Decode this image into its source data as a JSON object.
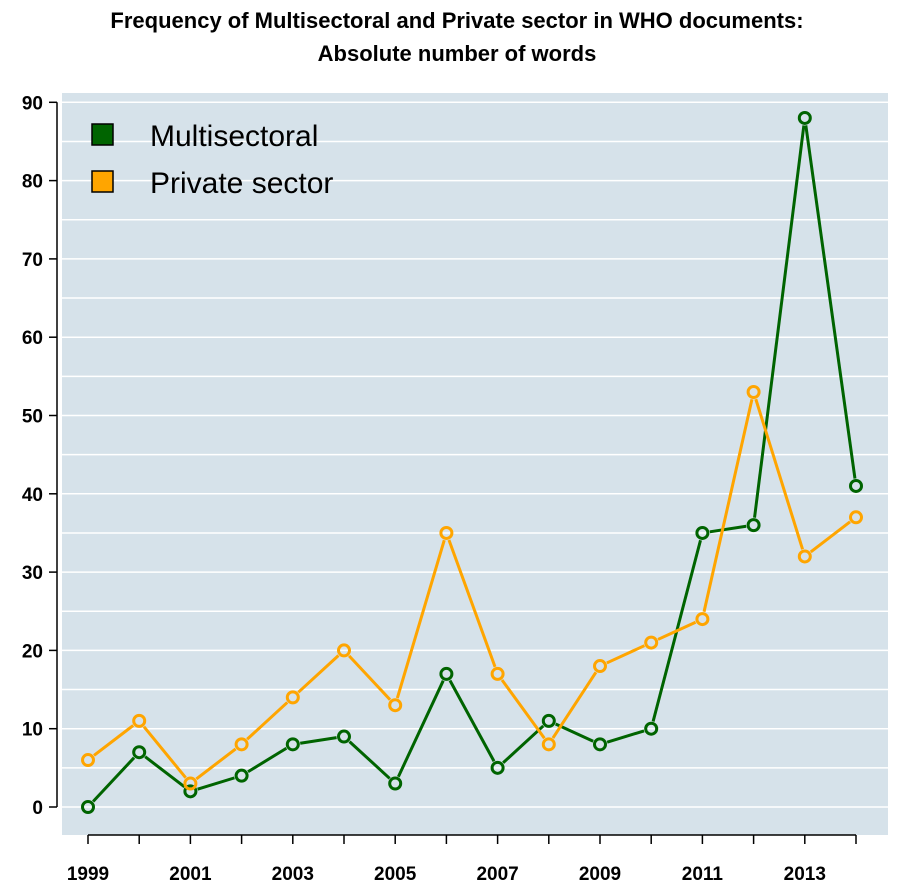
{
  "chart_data": {
    "type": "line",
    "title": "Frequency of Multisectoral and Private sector in WHO documents:",
    "subtitle": "Absolute number of words",
    "x": [
      1999,
      2000,
      2001,
      2002,
      2003,
      2004,
      2005,
      2006,
      2007,
      2008,
      2009,
      2010,
      2011,
      2012,
      2013,
      2014
    ],
    "x_tick_labels": [
      "1999",
      "2001",
      "2003",
      "2005",
      "2007",
      "2009",
      "2011",
      "2013"
    ],
    "y_tick_labels": [
      "0",
      "10",
      "20",
      "30",
      "40",
      "50",
      "60",
      "70",
      "80",
      "90"
    ],
    "ylim": [
      0,
      90
    ],
    "xlim": [
      1999,
      2014
    ],
    "grid": "horizontal",
    "background_color": "#d6e2ea",
    "legend_position": "top-left",
    "series": [
      {
        "name": "Multisectoral",
        "color": "#006400",
        "values": [
          0,
          7,
          2,
          4,
          8,
          9,
          3,
          17,
          5,
          11,
          8,
          10,
          35,
          36,
          88,
          41
        ]
      },
      {
        "name": "Private sector",
        "color": "#ffa500",
        "values": [
          6,
          11,
          3,
          8,
          14,
          20,
          13,
          35,
          17,
          8,
          18,
          21,
          24,
          53,
          32,
          37
        ]
      }
    ]
  }
}
